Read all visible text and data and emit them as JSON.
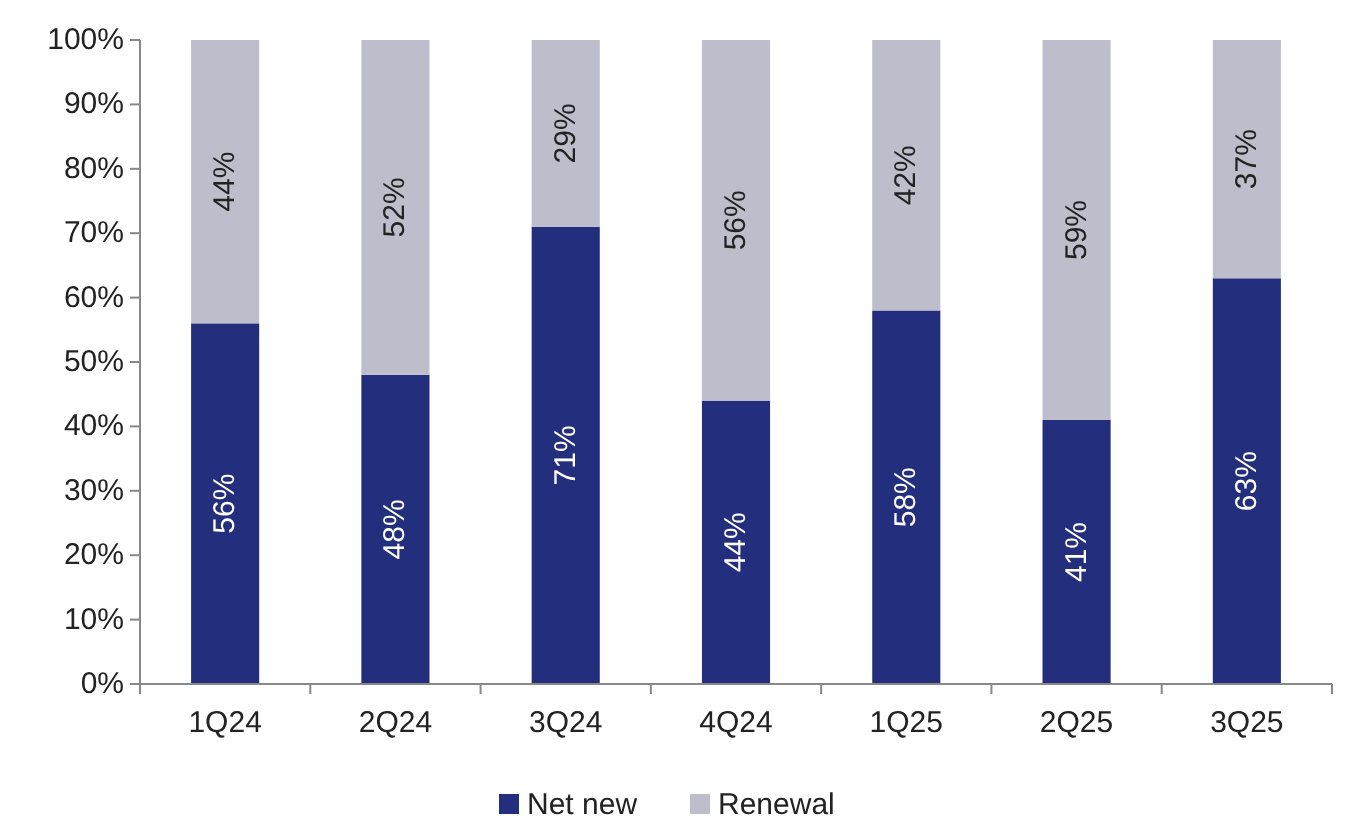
{
  "chart_data": {
    "type": "bar",
    "stacked": true,
    "categories": [
      "1Q24",
      "2Q24",
      "3Q24",
      "4Q24",
      "1Q25",
      "2Q25",
      "3Q25"
    ],
    "series": [
      {
        "name": "Net new",
        "color": "#232f7c",
        "values": [
          56,
          48,
          71,
          44,
          58,
          41,
          63
        ],
        "value_labels": [
          "56%",
          "48%",
          "71%",
          "44%",
          "58%",
          "41%",
          "63%"
        ]
      },
      {
        "name": "Renewal",
        "color": "#bebdcc",
        "values": [
          44,
          52,
          29,
          56,
          42,
          59,
          37
        ],
        "value_labels": [
          "44%",
          "52%",
          "29%",
          "56%",
          "42%",
          "59%",
          "37%"
        ]
      }
    ],
    "ylim": [
      0,
      100
    ],
    "yticks": [
      {
        "value": 0,
        "label": "0%"
      },
      {
        "value": 10,
        "label": "10%"
      },
      {
        "value": 20,
        "label": "20%"
      },
      {
        "value": 30,
        "label": "30%"
      },
      {
        "value": 40,
        "label": "40%"
      },
      {
        "value": 50,
        "label": "50%"
      },
      {
        "value": 60,
        "label": "60%"
      },
      {
        "value": 70,
        "label": "70%"
      },
      {
        "value": 80,
        "label": "80%"
      },
      {
        "value": 90,
        "label": "90%"
      },
      {
        "value": 100,
        "label": "100%"
      }
    ],
    "legend": "bottom"
  }
}
